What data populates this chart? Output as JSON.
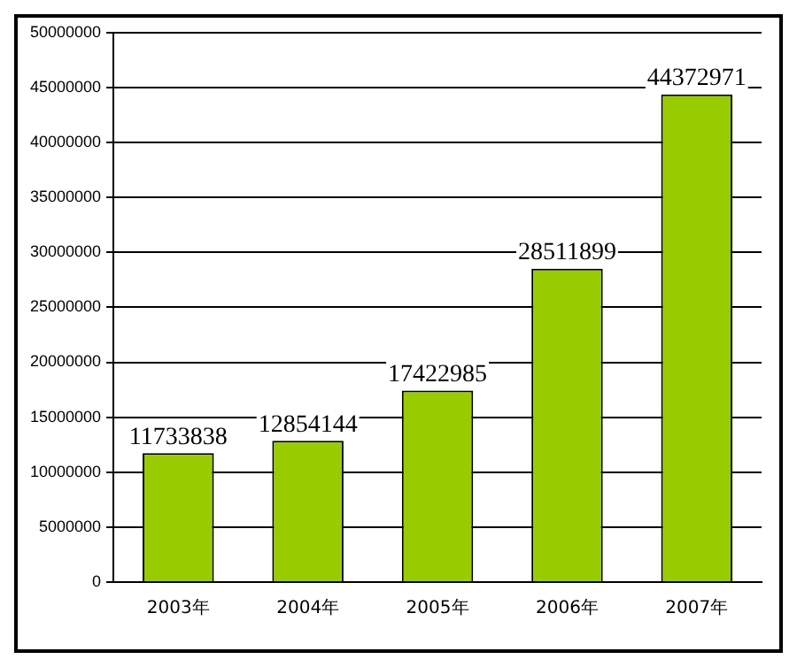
{
  "chart_data": {
    "type": "bar",
    "categories": [
      "2003年",
      "2004年",
      "2005年",
      "2006年",
      "2007年"
    ],
    "values": [
      11733838,
      12854144,
      17422985,
      28511899,
      44372971
    ],
    "color": "#99cc00",
    "ylim": [
      0,
      50000000
    ],
    "yticks": [
      0,
      5000000,
      10000000,
      15000000,
      20000000,
      25000000,
      30000000,
      35000000,
      40000000,
      45000000,
      50000000
    ],
    "grid": "y",
    "data_labels": true,
    "legend": false
  }
}
